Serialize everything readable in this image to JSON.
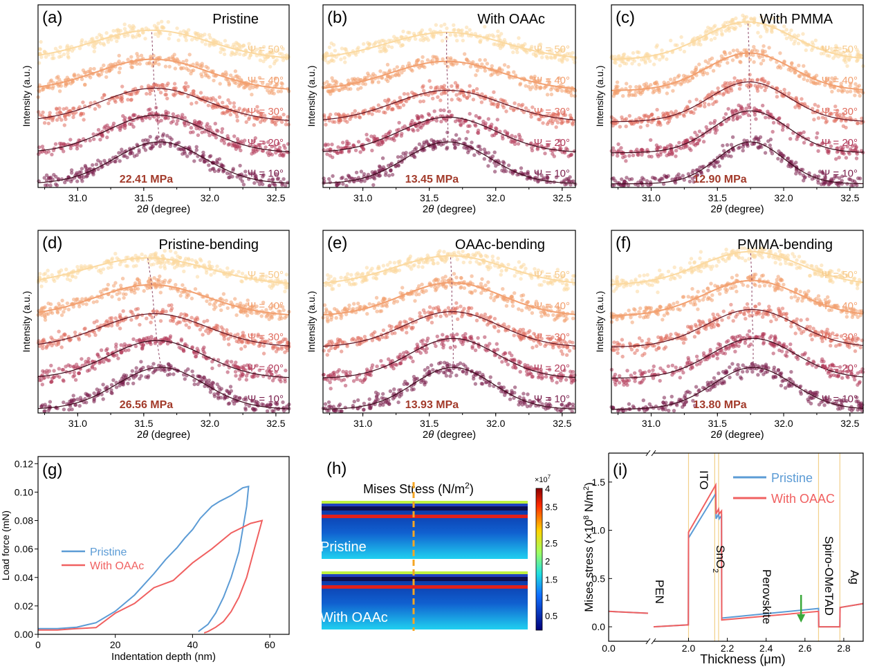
{
  "xrd_common": {
    "xlabel_prefix": "2",
    "xlabel_theta": "θ",
    "xlabel_suffix": " (degree)",
    "ylabel": "Intensity (a.u.)",
    "xticks": [
      31.0,
      31.5,
      32.0,
      32.5
    ],
    "xtick_labels": [
      "31.0",
      "31.5",
      "32.0",
      "32.5"
    ],
    "xlim": [
      30.7,
      32.6
    ],
    "psi_labels": [
      "Ψ = 10°",
      "Ψ = 20°",
      "Ψ = 30°",
      "Ψ = 40°",
      "Ψ = 50°"
    ],
    "series_colors": [
      "#7a1f4d",
      "#b23a5a",
      "#e06d5e",
      "#f2a070",
      "#fbd9a0"
    ]
  },
  "chart_data": [
    {
      "type": "scatter",
      "panel": "(a)",
      "title": "Pristine",
      "stress": "22.41 MPa",
      "peak_centers": [
        31.62,
        31.6,
        31.58,
        31.57,
        31.56
      ],
      "peak_widths": [
        0.34,
        0.37,
        0.4,
        0.42,
        0.44
      ],
      "peak_heights": [
        1.0,
        0.9,
        0.8,
        0.75,
        0.7
      ]
    },
    {
      "type": "scatter",
      "panel": "(b)",
      "title": "With OAAc",
      "stress": "13.45 MPa",
      "peak_centers": [
        31.64,
        31.64,
        31.64,
        31.63,
        31.63
      ],
      "peak_widths": [
        0.32,
        0.36,
        0.4,
        0.42,
        0.44
      ],
      "peak_heights": [
        1.0,
        0.85,
        0.75,
        0.7,
        0.65
      ]
    },
    {
      "type": "scatter",
      "panel": "(c)",
      "title": "With PMMA",
      "stress": "12.90 MPa",
      "peak_centers": [
        31.75,
        31.75,
        31.74,
        31.74,
        31.73
      ],
      "peak_widths": [
        0.25,
        0.28,
        0.3,
        0.32,
        0.34
      ],
      "peak_heights": [
        1.0,
        1.0,
        0.95,
        0.9,
        0.9
      ]
    },
    {
      "type": "scatter",
      "panel": "(d)",
      "title": "Pristine-bending",
      "stress": "26.56 MPa",
      "peak_centers": [
        31.63,
        31.6,
        31.58,
        31.56,
        31.53
      ],
      "peak_widths": [
        0.33,
        0.36,
        0.4,
        0.42,
        0.46
      ],
      "peak_heights": [
        1.0,
        0.9,
        0.8,
        0.75,
        0.65
      ]
    },
    {
      "type": "scatter",
      "panel": "(e)",
      "title": "OAAc-bending",
      "stress": "13.93 MPa",
      "peak_centers": [
        31.68,
        31.68,
        31.67,
        31.67,
        31.66
      ],
      "peak_widths": [
        0.3,
        0.33,
        0.36,
        0.38,
        0.42
      ],
      "peak_heights": [
        1.0,
        0.95,
        0.85,
        0.8,
        0.7
      ]
    },
    {
      "type": "scatter",
      "panel": "(f)",
      "title": "PMMA-bending",
      "stress": "13.80 MPa",
      "peak_centers": [
        31.77,
        31.77,
        31.76,
        31.76,
        31.75
      ],
      "peak_widths": [
        0.3,
        0.32,
        0.34,
        0.36,
        0.38
      ],
      "peak_heights": [
        1.0,
        0.95,
        0.9,
        0.85,
        0.8
      ]
    },
    {
      "type": "line",
      "panel": "(g)",
      "xlabel": "Indentation depth (nm)",
      "ylabel": "Load force (mN)",
      "xlim": [
        0,
        65
      ],
      "ylim": [
        0,
        0.125
      ],
      "xticks": [
        0,
        20,
        40,
        60
      ],
      "xtick_labels": [
        "0",
        "20",
        "40",
        "60"
      ],
      "yticks": [
        0,
        0.02,
        0.04,
        0.06,
        0.08,
        0.1,
        0.12
      ],
      "ytick_labels": [
        "0.00",
        "0.02",
        "0.04",
        "0.06",
        "0.08",
        "0.10",
        "0.12"
      ],
      "legend": [
        "Pristine",
        "With OAAc"
      ],
      "series": [
        {
          "name": "Pristine",
          "color": "#5b9bd5",
          "x": [
            0,
            5,
            10,
            15,
            20,
            25,
            30,
            33,
            36,
            38,
            40,
            42,
            45,
            47,
            50,
            53,
            54.5,
            54,
            52,
            50,
            48,
            46,
            44,
            42,
            41.5
          ],
          "y": [
            0.004,
            0.004,
            0.005,
            0.007,
            0.016,
            0.027,
            0.042,
            0.052,
            0.061,
            0.068,
            0.074,
            0.082,
            0.09,
            0.094,
            0.098,
            0.103,
            0.104,
            0.09,
            0.058,
            0.04,
            0.026,
            0.015,
            0.007,
            0.003,
            0.002
          ]
        },
        {
          "name": "With OAAc",
          "color": "#f06060",
          "x": [
            0,
            5,
            10,
            15,
            20,
            25,
            30,
            35,
            40,
            45,
            50,
            55,
            58,
            56,
            54,
            52,
            50,
            48,
            46,
            44,
            43
          ],
          "y": [
            0.003,
            0.003,
            0.004,
            0.006,
            0.014,
            0.022,
            0.031,
            0.04,
            0.05,
            0.06,
            0.071,
            0.078,
            0.08,
            0.06,
            0.04,
            0.026,
            0.016,
            0.009,
            0.005,
            0.002,
            0.001
          ]
        }
      ]
    },
    {
      "type": "heatmap",
      "panel": "(h)",
      "title_prefix": "Mises Stress (N/m",
      "title_sup": "2",
      "title_suffix": ")",
      "colorbar_max": "4",
      "colorbar_exp_base": "×10",
      "colorbar_exp": "7",
      "colorbar_ticks": [
        4,
        3.5,
        3,
        2.5,
        2,
        1.5,
        1,
        0.5
      ],
      "colorbar_tick_labels": [
        "4",
        "3.5",
        "3",
        "2.5",
        "2",
        "1.5",
        "1",
        "0.5"
      ],
      "clim": [
        0.1,
        4
      ],
      "samples": [
        "Pristine",
        "With OAAc"
      ]
    },
    {
      "type": "line",
      "panel": "(i)",
      "xlabel": "Thickness (μm)",
      "ylabel_prefix": "Mises stress (×10",
      "ylabel_sup": "8",
      "ylabel_mid": " N/m",
      "ylabel_sup2": "2",
      "ylabel_suffix": ")",
      "ylim": [
        -0.15,
        1.8
      ],
      "yticks": [
        0.0,
        0.5,
        1.0,
        1.5
      ],
      "ytick_labels": [
        "0.0",
        "0.5",
        "1.0",
        "1.5"
      ],
      "xticks": [
        0.0,
        2.0,
        2.2,
        2.4,
        2.6,
        2.8
      ],
      "xtick_labels": [
        "0.0",
        "2.0",
        "2.2",
        "2.4",
        "2.6",
        "2.8"
      ],
      "xlim_broken": [
        [
          0.0,
          0.25
        ],
        [
          1.82,
          2.9
        ]
      ],
      "layers": [
        "PEN",
        "ITO",
        "SnO",
        "Perovskite",
        "Spiro-OMeTAD",
        "Ag"
      ],
      "snO2_sub": "2",
      "boundaries": [
        2.0,
        2.135,
        2.155,
        2.67,
        2.78
      ],
      "legend": [
        "Pristine",
        "With OAAC"
      ],
      "series": [
        {
          "name": "Pristine",
          "color": "#5b9bd5",
          "x": [
            0.0,
            0.25,
            1.82,
            1.999,
            2.0,
            2.14,
            2.142,
            2.155,
            2.158,
            2.17,
            2.171,
            2.67,
            2.671,
            2.78,
            2.781,
            2.9
          ],
          "y": [
            0.16,
            0.14,
            0.0,
            0.02,
            0.92,
            1.38,
            1.12,
            1.17,
            1.12,
            1.15,
            0.09,
            0.19,
            0.0,
            0.0,
            0.2,
            0.24
          ]
        },
        {
          "name": "With OAAC",
          "color": "#f06060",
          "x": [
            0.0,
            0.25,
            1.82,
            1.999,
            2.0,
            2.14,
            2.142,
            2.155,
            2.158,
            2.17,
            2.171,
            2.67,
            2.671,
            2.78,
            2.781,
            2.9
          ],
          "y": [
            0.16,
            0.14,
            0.0,
            0.02,
            0.98,
            1.47,
            1.17,
            1.22,
            1.17,
            1.2,
            0.07,
            0.16,
            0.0,
            0.0,
            0.2,
            0.24
          ]
        }
      ],
      "arrow_x": 2.58,
      "arrow_color": "#3aa83a"
    }
  ]
}
